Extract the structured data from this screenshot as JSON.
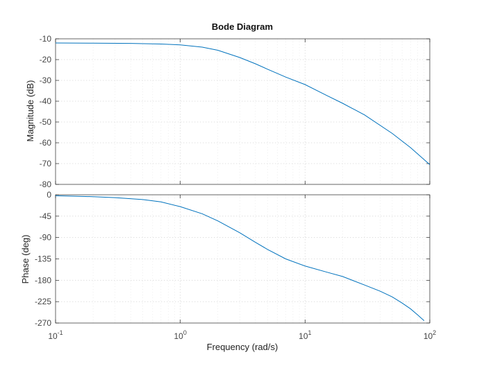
{
  "chart_data": {
    "type": "line",
    "title": "Bode Diagram",
    "xlabel": "Frequency  (rad/s)",
    "xscale": "log",
    "xlim": [
      0.1,
      100
    ],
    "x_ticks": [
      {
        "base": "10",
        "exp": "-1"
      },
      {
        "base": "10",
        "exp": "0"
      },
      {
        "base": "10",
        "exp": "1"
      },
      {
        "base": "10",
        "exp": "2"
      }
    ],
    "grid": true,
    "line_color": "#0072BD",
    "panels": [
      {
        "name": "magnitude",
        "ylabel": "Magnitude (dB)",
        "ylim": [
          -80,
          -10
        ],
        "y_ticks": [
          "-10",
          "-20",
          "-30",
          "-40",
          "-50",
          "-60",
          "-70",
          "-80"
        ],
        "series": [
          {
            "x": [
              0.1,
              0.2,
              0.4,
              0.7,
              1,
              1.5,
              2,
              3,
              4,
              5,
              7,
              10,
              15,
              20,
              30,
              50,
              70,
              100
            ],
            "y": [
              -12,
              -12.1,
              -12.2,
              -12.5,
              -12.9,
              -14,
              -15.5,
              -19,
              -22,
              -24.6,
              -28.4,
              -32,
              -37.3,
              -41,
              -46.6,
              -55.5,
              -62.3,
              -70.5
            ]
          }
        ]
      },
      {
        "name": "phase",
        "ylabel": "Phase (deg)",
        "ylim": [
          -270,
          0
        ],
        "y_ticks": [
          "0",
          "-45",
          "-90",
          "-135",
          "-180",
          "-225",
          "-270"
        ],
        "series": [
          {
            "x": [
              0.1,
              0.2,
              0.3,
              0.5,
              0.7,
              1,
              1.5,
              2,
              3,
              4,
              5,
              7,
              10,
              15,
              20,
              30,
              40,
              50,
              60,
              70,
              80,
              90
            ],
            "y": [
              -2,
              -4,
              -6,
              -10,
              -15,
              -25,
              -40,
              -55,
              -80,
              -100,
              -115,
              -135,
              -150,
              -163,
              -172,
              -190,
              -203,
              -215,
              -228,
              -240,
              -253,
              -265
            ]
          }
        ]
      }
    ]
  }
}
